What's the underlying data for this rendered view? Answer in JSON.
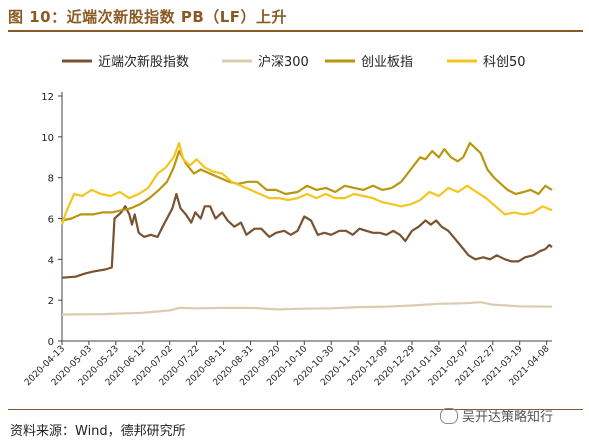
{
  "header": {
    "title": "图 10：近端次新股指数 PB（LF）上升"
  },
  "footer": {
    "source": "资料来源：Wind，德邦研究所",
    "watermark": "吴开达策略知行"
  },
  "chart_data": {
    "type": "line",
    "title": "",
    "xlabel": "",
    "ylabel": "",
    "ylim": [
      0,
      12
    ],
    "yticks": [
      0,
      2,
      4,
      6,
      8,
      10,
      12
    ],
    "legend_position": "top",
    "grid": false,
    "x_ticks": [
      "2020-04-13",
      "2020-05-03",
      "2020-05-23",
      "2020-06-12",
      "2020-07-02",
      "2020-07-22",
      "2020-08-11",
      "2020-08-31",
      "2020-09-20",
      "2020-10-10",
      "2020-10-30",
      "2020-11-19",
      "2020-12-09",
      "2020-12-29",
      "2021-01-18",
      "2021-02-07",
      "2021-02-27",
      "2021-03-19",
      "2021-04-08"
    ],
    "x_start": "2020-04-13",
    "x_end": "2021-04-12",
    "series": [
      {
        "name": "近端次新股指数",
        "color": "#7a5230",
        "points": [
          [
            "2020-04-13",
            3.1
          ],
          [
            "2020-04-23",
            3.15
          ],
          [
            "2020-04-30",
            3.3
          ],
          [
            "2020-05-06",
            3.4
          ],
          [
            "2020-05-15",
            3.5
          ],
          [
            "2020-05-20",
            3.6
          ],
          [
            "2020-05-22",
            6.0
          ],
          [
            "2020-05-27",
            6.3
          ],
          [
            "2020-05-30",
            6.6
          ],
          [
            "2020-06-02",
            6.2
          ],
          [
            "2020-06-04",
            5.7
          ],
          [
            "2020-06-06",
            6.2
          ],
          [
            "2020-06-09",
            5.3
          ],
          [
            "2020-06-13",
            5.1
          ],
          [
            "2020-06-18",
            5.2
          ],
          [
            "2020-06-23",
            5.1
          ],
          [
            "2020-06-26",
            5.5
          ],
          [
            "2020-06-30",
            6.0
          ],
          [
            "2020-07-04",
            6.5
          ],
          [
            "2020-07-07",
            7.2
          ],
          [
            "2020-07-10",
            6.5
          ],
          [
            "2020-07-14",
            6.2
          ],
          [
            "2020-07-18",
            5.8
          ],
          [
            "2020-07-21",
            6.3
          ],
          [
            "2020-07-25",
            6.0
          ],
          [
            "2020-07-28",
            6.6
          ],
          [
            "2020-08-01",
            6.6
          ],
          [
            "2020-08-05",
            6.0
          ],
          [
            "2020-08-10",
            6.3
          ],
          [
            "2020-08-14",
            5.9
          ],
          [
            "2020-08-19",
            5.6
          ],
          [
            "2020-08-24",
            5.8
          ],
          [
            "2020-08-28",
            5.2
          ],
          [
            "2020-09-03",
            5.5
          ],
          [
            "2020-09-08",
            5.5
          ],
          [
            "2020-09-14",
            5.1
          ],
          [
            "2020-09-19",
            5.3
          ],
          [
            "2020-09-25",
            5.4
          ],
          [
            "2020-09-30",
            5.2
          ],
          [
            "2020-10-05",
            5.4
          ],
          [
            "2020-10-10",
            6.1
          ],
          [
            "2020-10-15",
            5.9
          ],
          [
            "2020-10-20",
            5.2
          ],
          [
            "2020-10-25",
            5.3
          ],
          [
            "2020-10-30",
            5.2
          ],
          [
            "2020-11-05",
            5.4
          ],
          [
            "2020-11-10",
            5.4
          ],
          [
            "2020-11-15",
            5.2
          ],
          [
            "2020-11-20",
            5.5
          ],
          [
            "2020-11-25",
            5.4
          ],
          [
            "2020-11-30",
            5.3
          ],
          [
            "2020-12-05",
            5.3
          ],
          [
            "2020-12-10",
            5.2
          ],
          [
            "2020-12-15",
            5.4
          ],
          [
            "2020-12-20",
            5.2
          ],
          [
            "2020-12-24",
            4.9
          ],
          [
            "2020-12-29",
            5.4
          ],
          [
            "2021-01-03",
            5.6
          ],
          [
            "2021-01-08",
            5.9
          ],
          [
            "2021-01-12",
            5.7
          ],
          [
            "2021-01-16",
            5.9
          ],
          [
            "2021-01-20",
            5.6
          ],
          [
            "2021-01-25",
            5.4
          ],
          [
            "2021-01-30",
            5.0
          ],
          [
            "2021-02-04",
            4.6
          ],
          [
            "2021-02-09",
            4.2
          ],
          [
            "2021-02-14",
            4.0
          ],
          [
            "2021-02-20",
            4.1
          ],
          [
            "2021-02-25",
            4.0
          ],
          [
            "2021-03-02",
            4.2
          ],
          [
            "2021-03-08",
            4.0
          ],
          [
            "2021-03-13",
            3.9
          ],
          [
            "2021-03-18",
            3.9
          ],
          [
            "2021-03-23",
            4.1
          ],
          [
            "2021-03-29",
            4.2
          ],
          [
            "2021-04-03",
            4.4
          ],
          [
            "2021-04-07",
            4.5
          ],
          [
            "2021-04-10",
            4.7
          ],
          [
            "2021-04-12",
            4.6
          ]
        ]
      },
      {
        "name": "沪深300",
        "color": "#d9ccb0",
        "points": [
          [
            "2020-04-13",
            1.3
          ],
          [
            "2020-05-13",
            1.32
          ],
          [
            "2020-06-12",
            1.38
          ],
          [
            "2020-07-02",
            1.5
          ],
          [
            "2020-07-09",
            1.62
          ],
          [
            "2020-07-22",
            1.6
          ],
          [
            "2020-08-11",
            1.62
          ],
          [
            "2020-09-01",
            1.62
          ],
          [
            "2020-09-20",
            1.55
          ],
          [
            "2020-10-10",
            1.58
          ],
          [
            "2020-10-30",
            1.6
          ],
          [
            "2020-11-19",
            1.66
          ],
          [
            "2020-12-09",
            1.68
          ],
          [
            "2020-12-29",
            1.74
          ],
          [
            "2021-01-18",
            1.82
          ],
          [
            "2021-02-07",
            1.85
          ],
          [
            "2021-02-18",
            1.9
          ],
          [
            "2021-02-27",
            1.78
          ],
          [
            "2021-03-19",
            1.7
          ],
          [
            "2021-04-12",
            1.68
          ]
        ]
      },
      {
        "name": "创业板指",
        "color": "#b8960f",
        "points": [
          [
            "2020-04-13",
            5.9
          ],
          [
            "2020-04-20",
            6.0
          ],
          [
            "2020-04-27",
            6.2
          ],
          [
            "2020-05-06",
            6.2
          ],
          [
            "2020-05-13",
            6.3
          ],
          [
            "2020-05-20",
            6.3
          ],
          [
            "2020-05-27",
            6.4
          ],
          [
            "2020-06-03",
            6.5
          ],
          [
            "2020-06-10",
            6.7
          ],
          [
            "2020-06-17",
            7.0
          ],
          [
            "2020-06-24",
            7.4
          ],
          [
            "2020-06-30",
            7.8
          ],
          [
            "2020-07-05",
            8.5
          ],
          [
            "2020-07-09",
            9.3
          ],
          [
            "2020-07-14",
            8.7
          ],
          [
            "2020-07-20",
            8.2
          ],
          [
            "2020-07-25",
            8.4
          ],
          [
            "2020-08-01",
            8.2
          ],
          [
            "2020-08-08",
            8.0
          ],
          [
            "2020-08-15",
            7.8
          ],
          [
            "2020-08-22",
            7.7
          ],
          [
            "2020-08-29",
            7.8
          ],
          [
            "2020-09-05",
            7.8
          ],
          [
            "2020-09-12",
            7.4
          ],
          [
            "2020-09-19",
            7.4
          ],
          [
            "2020-09-26",
            7.2
          ],
          [
            "2020-10-05",
            7.3
          ],
          [
            "2020-10-12",
            7.6
          ],
          [
            "2020-10-19",
            7.4
          ],
          [
            "2020-10-26",
            7.5
          ],
          [
            "2020-11-02",
            7.3
          ],
          [
            "2020-11-09",
            7.6
          ],
          [
            "2020-11-16",
            7.5
          ],
          [
            "2020-11-23",
            7.4
          ],
          [
            "2020-11-30",
            7.6
          ],
          [
            "2020-12-07",
            7.4
          ],
          [
            "2020-12-14",
            7.5
          ],
          [
            "2020-12-21",
            7.8
          ],
          [
            "2020-12-28",
            8.4
          ],
          [
            "2021-01-04",
            9.0
          ],
          [
            "2021-01-08",
            8.9
          ],
          [
            "2021-01-13",
            9.3
          ],
          [
            "2021-01-18",
            9.0
          ],
          [
            "2021-01-22",
            9.4
          ],
          [
            "2021-01-27",
            9.0
          ],
          [
            "2021-02-01",
            8.8
          ],
          [
            "2021-02-05",
            9.0
          ],
          [
            "2021-02-10",
            9.7
          ],
          [
            "2021-02-18",
            9.2
          ],
          [
            "2021-02-23",
            8.4
          ],
          [
            "2021-02-28",
            8.0
          ],
          [
            "2021-03-05",
            7.7
          ],
          [
            "2021-03-10",
            7.4
          ],
          [
            "2021-03-16",
            7.2
          ],
          [
            "2021-03-22",
            7.3
          ],
          [
            "2021-03-27",
            7.4
          ],
          [
            "2021-04-02",
            7.2
          ],
          [
            "2021-04-07",
            7.6
          ],
          [
            "2021-04-12",
            7.4
          ]
        ]
      },
      {
        "name": "科创50",
        "color": "#f5c51b",
        "points": [
          [
            "2020-04-13",
            5.7
          ],
          [
            "2020-04-16",
            6.3
          ],
          [
            "2020-04-22",
            7.2
          ],
          [
            "2020-04-28",
            7.1
          ],
          [
            "2020-05-05",
            7.4
          ],
          [
            "2020-05-12",
            7.2
          ],
          [
            "2020-05-19",
            7.1
          ],
          [
            "2020-05-26",
            7.3
          ],
          [
            "2020-06-02",
            7.0
          ],
          [
            "2020-06-09",
            7.2
          ],
          [
            "2020-06-16",
            7.5
          ],
          [
            "2020-06-23",
            8.2
          ],
          [
            "2020-06-29",
            8.5
          ],
          [
            "2020-07-05",
            9.0
          ],
          [
            "2020-07-09",
            9.7
          ],
          [
            "2020-07-12",
            8.9
          ],
          [
            "2020-07-17",
            8.6
          ],
          [
            "2020-07-22",
            8.9
          ],
          [
            "2020-07-28",
            8.5
          ],
          [
            "2020-08-03",
            8.3
          ],
          [
            "2020-08-10",
            8.2
          ],
          [
            "2020-08-17",
            7.8
          ],
          [
            "2020-08-24",
            7.6
          ],
          [
            "2020-08-31",
            7.4
          ],
          [
            "2020-09-07",
            7.2
          ],
          [
            "2020-09-14",
            7.0
          ],
          [
            "2020-09-21",
            7.0
          ],
          [
            "2020-09-28",
            6.9
          ],
          [
            "2020-10-05",
            7.0
          ],
          [
            "2020-10-12",
            7.2
          ],
          [
            "2020-10-19",
            7.0
          ],
          [
            "2020-10-26",
            7.2
          ],
          [
            "2020-11-02",
            7.0
          ],
          [
            "2020-11-09",
            7.0
          ],
          [
            "2020-11-16",
            7.2
          ],
          [
            "2020-11-23",
            7.1
          ],
          [
            "2020-11-30",
            7.0
          ],
          [
            "2020-12-07",
            6.8
          ],
          [
            "2020-12-14",
            6.7
          ],
          [
            "2020-12-21",
            6.6
          ],
          [
            "2020-12-28",
            6.7
          ],
          [
            "2021-01-04",
            6.9
          ],
          [
            "2021-01-11",
            7.3
          ],
          [
            "2021-01-18",
            7.1
          ],
          [
            "2021-01-25",
            7.5
          ],
          [
            "2021-02-01",
            7.3
          ],
          [
            "2021-02-08",
            7.6
          ],
          [
            "2021-02-15",
            7.3
          ],
          [
            "2021-02-22",
            7.0
          ],
          [
            "2021-03-01",
            6.6
          ],
          [
            "2021-03-08",
            6.2
          ],
          [
            "2021-03-15",
            6.3
          ],
          [
            "2021-03-22",
            6.2
          ],
          [
            "2021-03-29",
            6.3
          ],
          [
            "2021-04-05",
            6.6
          ],
          [
            "2021-04-12",
            6.4
          ]
        ]
      }
    ]
  }
}
